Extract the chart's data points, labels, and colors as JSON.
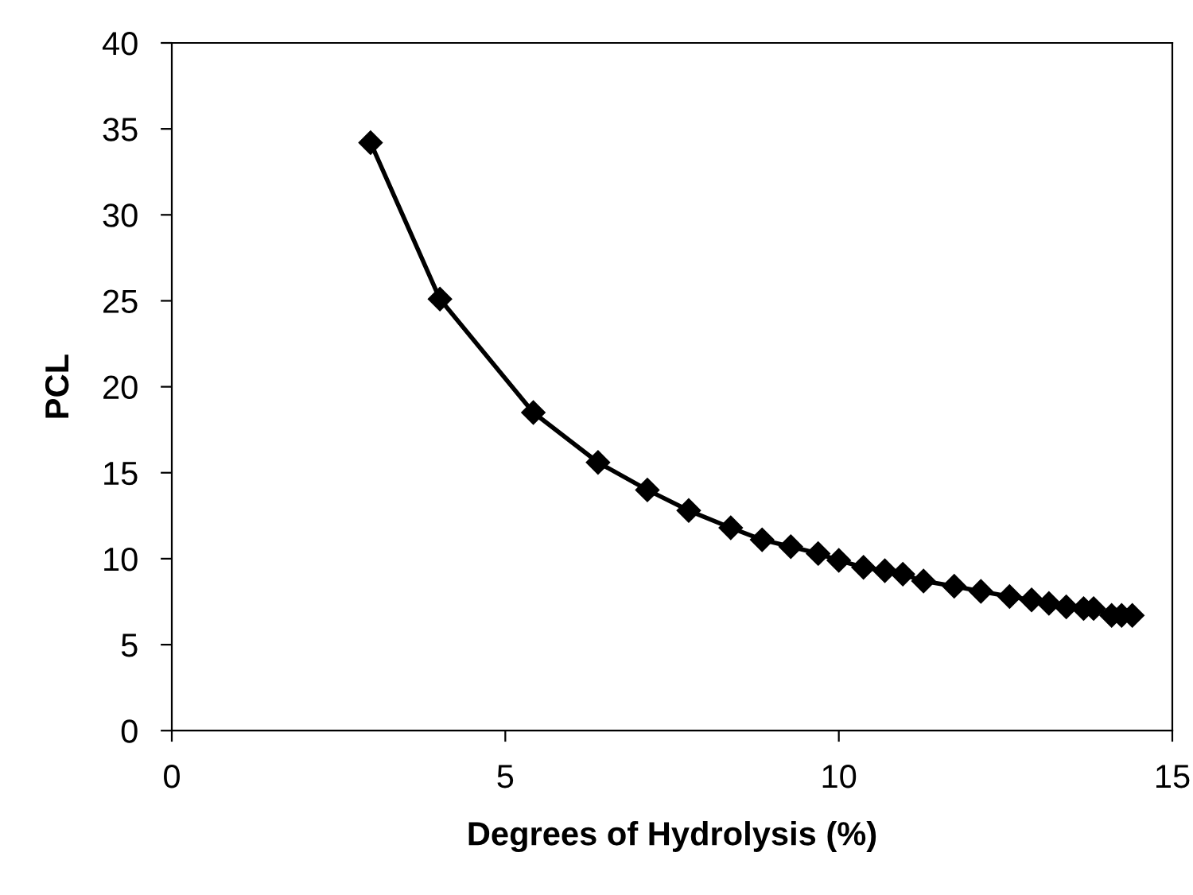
{
  "chart_data": {
    "type": "line",
    "xlabel": "Degrees of Hydrolysis (%)",
    "ylabel": "PCL",
    "x": [
      2.98,
      4.02,
      5.42,
      6.39,
      7.13,
      7.75,
      8.38,
      8.85,
      9.28,
      9.69,
      10.0,
      10.37,
      10.69,
      10.96,
      11.27,
      11.73,
      12.13,
      12.56,
      12.89,
      13.15,
      13.41,
      13.67,
      13.82,
      14.09,
      14.24,
      14.4
    ],
    "series": [
      {
        "color": "#000000",
        "values": [
          34.2,
          25.1,
          18.5,
          15.6,
          14.0,
          12.8,
          11.8,
          11.1,
          10.7,
          10.3,
          9.9,
          9.5,
          9.3,
          9.1,
          8.7,
          8.4,
          8.1,
          7.8,
          7.6,
          7.4,
          7.2,
          7.1,
          7.1,
          6.7,
          6.7,
          6.7
        ]
      }
    ],
    "xlim": [
      0,
      15
    ],
    "xticks": [
      0,
      5,
      10,
      15
    ],
    "ylim": [
      0,
      40
    ],
    "yticks": [
      0,
      5,
      10,
      15,
      20,
      25,
      30,
      35,
      40
    ],
    "marker": "diamond",
    "line_style": "solid",
    "grid": false
  }
}
